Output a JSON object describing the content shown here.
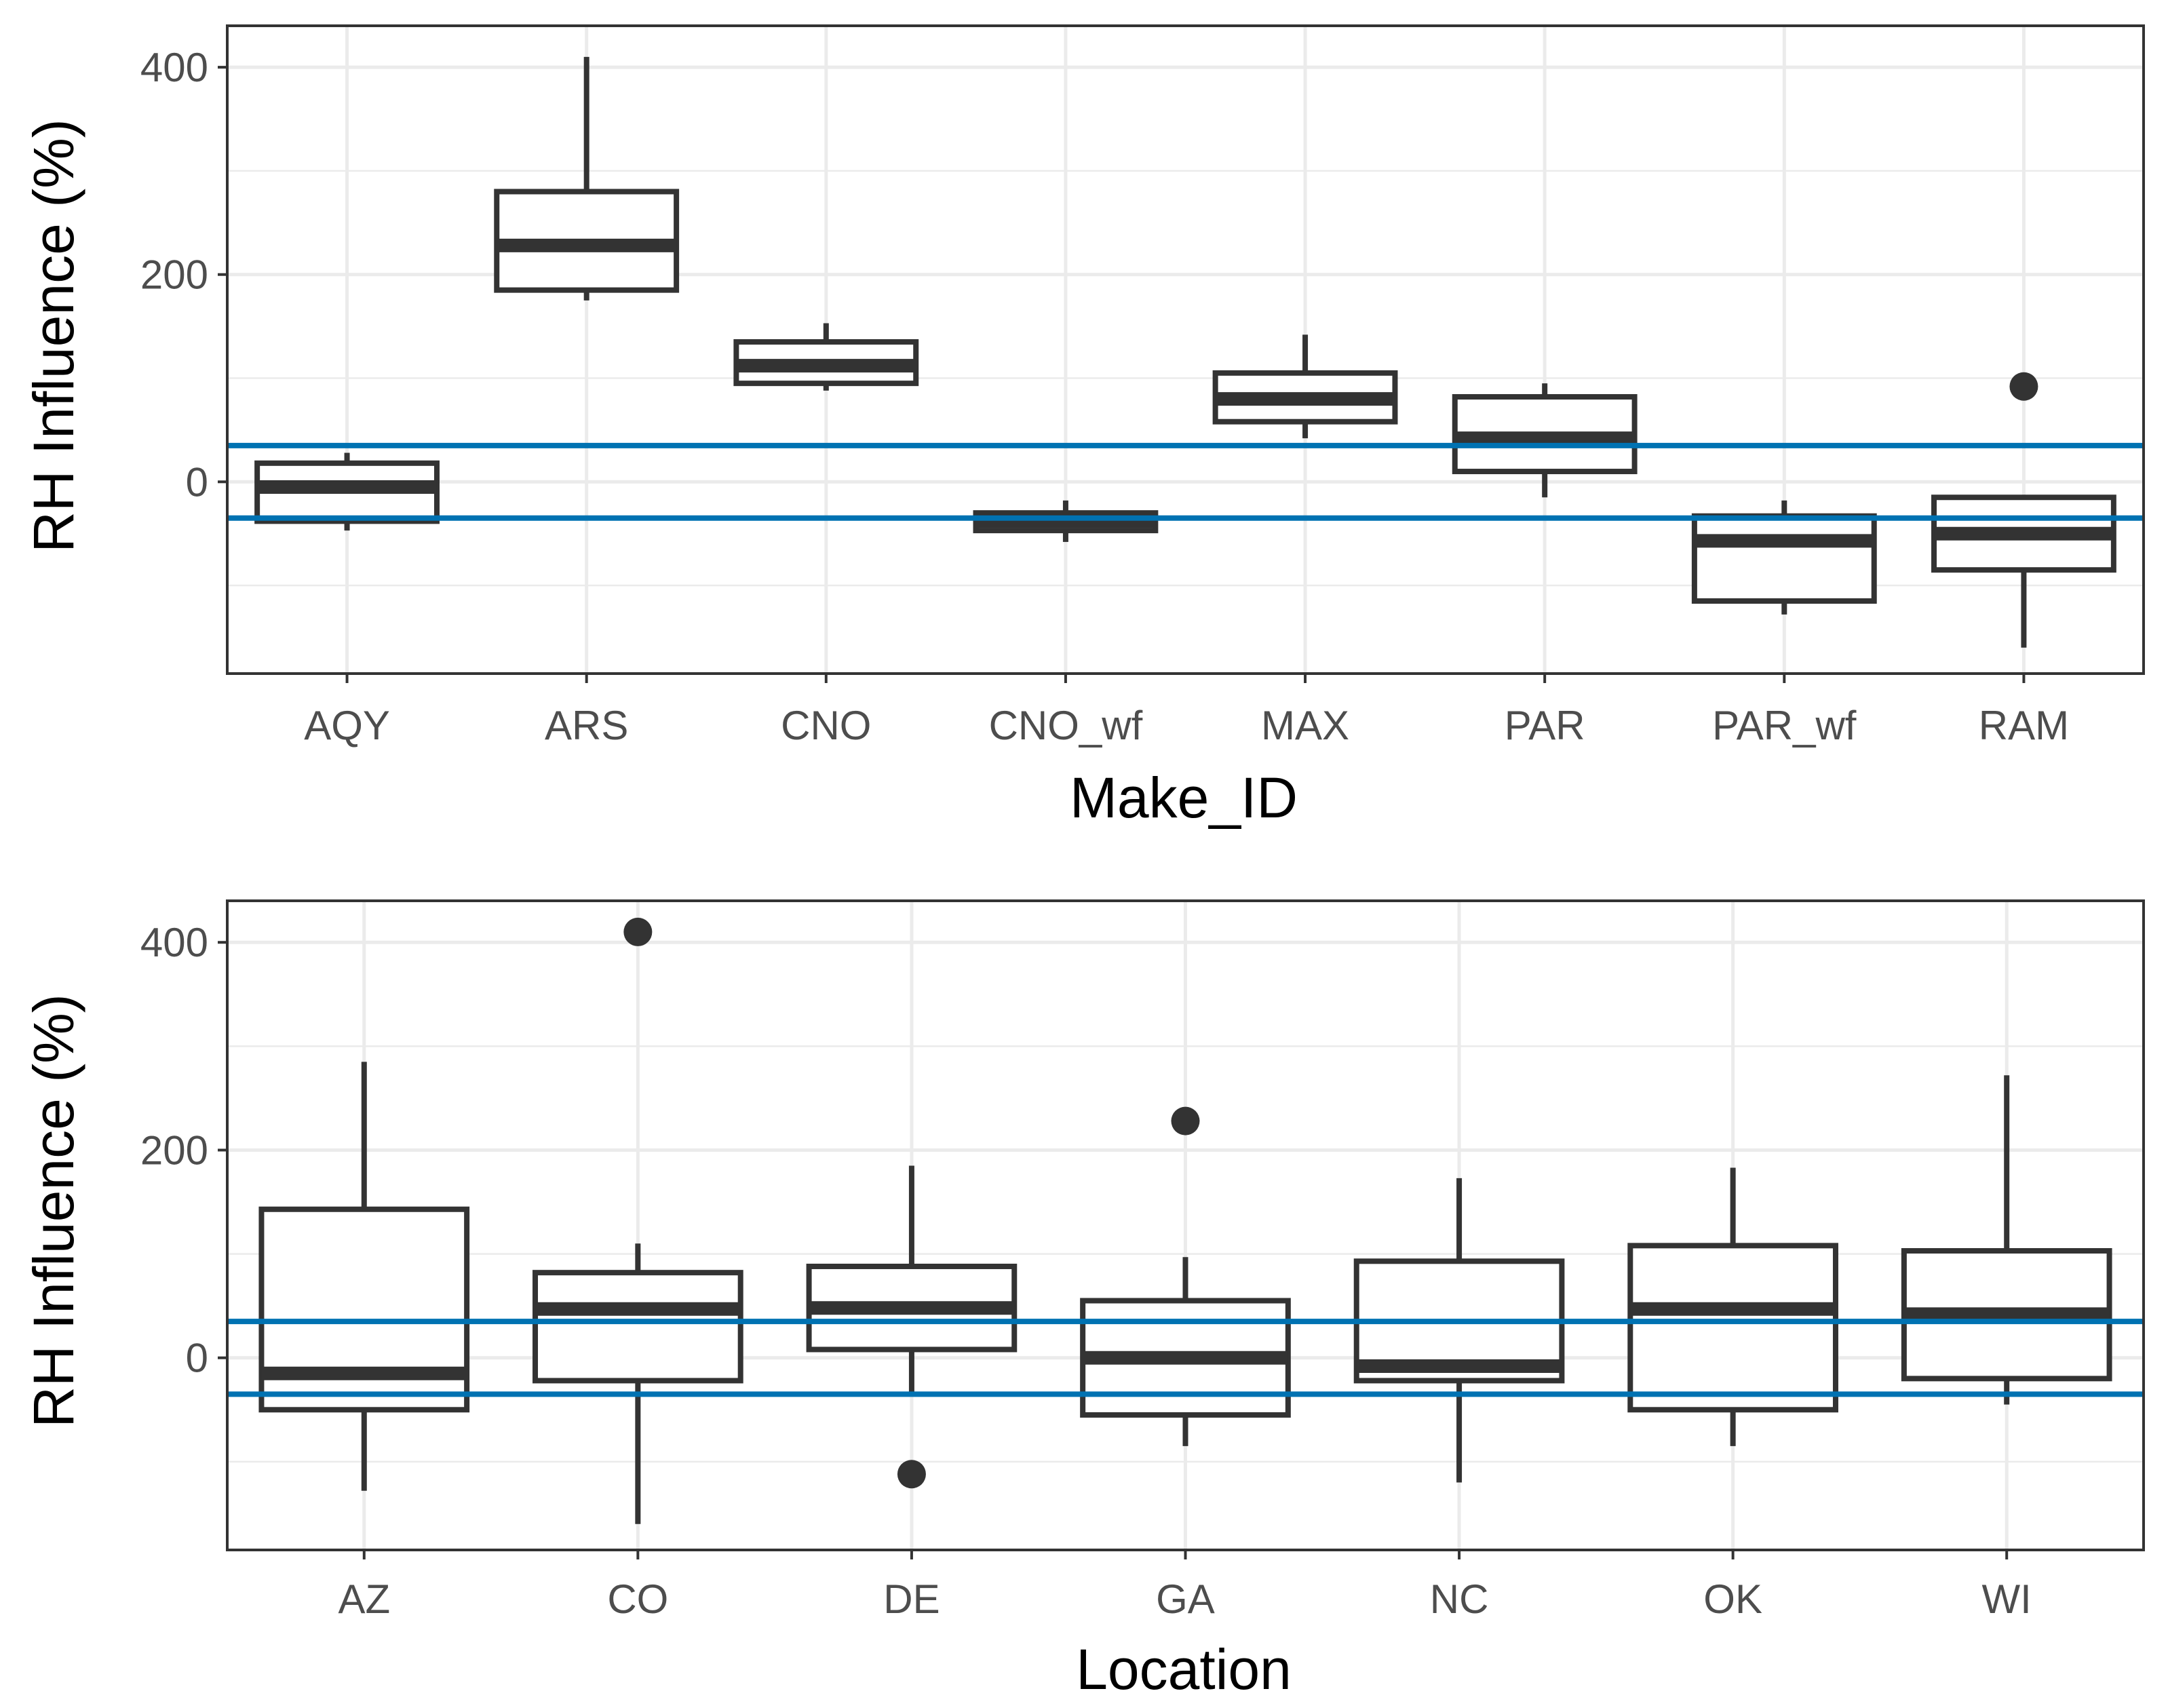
{
  "colors": {
    "reference_line": "#0072B2",
    "box": "#333333",
    "grid": "#ebebeb",
    "background": "#ffffff"
  },
  "chart_data": [
    {
      "type": "boxplot",
      "xlabel": "Make_ID",
      "ylabel": "RH Influence (%)",
      "ylim": [
        -185,
        440
      ],
      "yticks": [
        0,
        200,
        400
      ],
      "grid": true,
      "reference_lines": [
        35,
        -35
      ],
      "categories": [
        "AQY",
        "ARS",
        "CNO",
        "CNO_wf",
        "MAX",
        "PAR",
        "PAR_wf",
        "RAM"
      ],
      "boxes": [
        {
          "lower_whisker": -47,
          "q1": -38,
          "median": -5,
          "q3": 18,
          "upper_whisker": 28,
          "outliers": []
        },
        {
          "lower_whisker": 175,
          "q1": 185,
          "median": 228,
          "q3": 280,
          "upper_whisker": 410,
          "outliers": []
        },
        {
          "lower_whisker": 88,
          "q1": 95,
          "median": 112,
          "q3": 135,
          "upper_whisker": 153,
          "outliers": []
        },
        {
          "lower_whisker": -58,
          "q1": -47,
          "median": -38,
          "q3": -30,
          "upper_whisker": -18,
          "outliers": []
        },
        {
          "lower_whisker": 42,
          "q1": 58,
          "median": 80,
          "q3": 105,
          "upper_whisker": 142,
          "outliers": []
        },
        {
          "lower_whisker": -15,
          "q1": 10,
          "median": 42,
          "q3": 82,
          "upper_whisker": 95,
          "outliers": []
        },
        {
          "lower_whisker": -128,
          "q1": -115,
          "median": -57,
          "q3": -33,
          "upper_whisker": -18,
          "outliers": []
        },
        {
          "lower_whisker": -160,
          "q1": -85,
          "median": -50,
          "q3": -15,
          "upper_whisker": -15,
          "outliers": [
            92
          ]
        }
      ]
    },
    {
      "type": "boxplot",
      "xlabel": "Location",
      "ylabel": "RH Influence (%)",
      "ylim": [
        -185,
        440
      ],
      "yticks": [
        0,
        200,
        400
      ],
      "grid": true,
      "reference_lines": [
        35,
        -35
      ],
      "categories": [
        "AZ",
        "CO",
        "DE",
        "GA",
        "NC",
        "OK",
        "WI"
      ],
      "boxes": [
        {
          "lower_whisker": -128,
          "q1": -50,
          "median": -15,
          "q3": 143,
          "upper_whisker": 285,
          "outliers": []
        },
        {
          "lower_whisker": -160,
          "q1": -22,
          "median": 47,
          "q3": 82,
          "upper_whisker": 110,
          "outliers": [
            410
          ]
        },
        {
          "lower_whisker": -35,
          "q1": 8,
          "median": 48,
          "q3": 88,
          "upper_whisker": 185,
          "outliers": [
            -112
          ]
        },
        {
          "lower_whisker": -85,
          "q1": -55,
          "median": 0,
          "q3": 55,
          "upper_whisker": 97,
          "outliers": [
            228
          ]
        },
        {
          "lower_whisker": -120,
          "q1": -22,
          "median": -8,
          "q3": 93,
          "upper_whisker": 173,
          "outliers": []
        },
        {
          "lower_whisker": -85,
          "q1": -50,
          "median": 47,
          "q3": 108,
          "upper_whisker": 183,
          "outliers": []
        },
        {
          "lower_whisker": -45,
          "q1": -20,
          "median": 42,
          "q3": 103,
          "upper_whisker": 272,
          "outliers": []
        }
      ]
    }
  ]
}
